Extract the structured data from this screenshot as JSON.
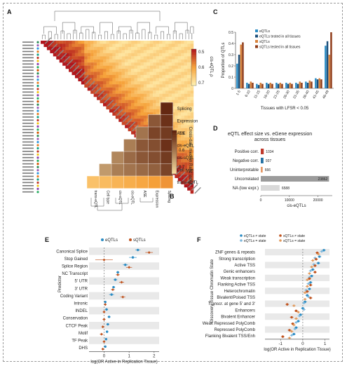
{
  "figure": {
    "panel_letters": [
      "A",
      "B",
      "C",
      "D",
      "E",
      "F"
    ]
  },
  "panel_a": {
    "colorbar_label": "cis-eQTL ρ",
    "colorbar_ticks": [
      "0.5",
      "0.6",
      "0.7"
    ],
    "colors": {
      "low": "#fff0b0",
      "mid": "#f6a23a",
      "high": "#b0141b"
    }
  },
  "panel_b": {
    "rows": [
      "Splicing",
      "Expression",
      "ASE",
      "cis-eQTL",
      "cis-sQTL",
      "Cell type",
      "trans-eQTL"
    ],
    "cols": [
      "trans-eQTL",
      "Cell type",
      "cis-sQTL",
      "cis-eQTL",
      "ASE",
      "Expression",
      "Splicing"
    ],
    "colorbar_label": "Cross-data median Rand index",
    "colorbar_ticks": [
      "0.5",
      "0.6",
      "0.7"
    ]
  },
  "chart_data": [
    {
      "panel": "C",
      "type": "bar",
      "xlabel": "Tissues with LFSR < 0.05",
      "ylabel": "Proportion of QTLs",
      "ylim": [
        0,
        0.5
      ],
      "yticks": [
        "0",
        "0.1",
        "0.2",
        "0.3",
        "0.4",
        "0.5"
      ],
      "categories": [
        "1-5",
        "6-10",
        "11-15",
        "16-20",
        "21-25",
        "26-30",
        "31-35",
        "36-40",
        "41-45",
        "46-49"
      ],
      "series": [
        {
          "name": "eQTLs",
          "color": "#2b8cc4",
          "values": [
            0.22,
            0.05,
            0.04,
            0.05,
            0.05,
            0.05,
            0.05,
            0.06,
            0.09,
            0.38
          ]
        },
        {
          "name": "eQTLs tested in all tissues",
          "color": "#1a4e7a",
          "values": [
            0.3,
            0.04,
            0.03,
            0.04,
            0.04,
            0.04,
            0.04,
            0.05,
            0.08,
            0.42
          ]
        },
        {
          "name": "sQTLs",
          "color": "#d8823a",
          "values": [
            0.39,
            0.06,
            0.05,
            0.05,
            0.05,
            0.05,
            0.06,
            0.07,
            0.09,
            0.3
          ]
        },
        {
          "name": "sQTLs tested in all tissues",
          "color": "#8e3a16",
          "values": [
            0.41,
            0.05,
            0.04,
            0.04,
            0.04,
            0.04,
            0.05,
            0.06,
            0.08,
            0.5
          ]
        }
      ]
    },
    {
      "panel": "D",
      "type": "bar",
      "title": "eQTL effect size vs. eGene expression across tissues",
      "xlabel": "cis-eQTLs",
      "categories": [
        "Positive corr.",
        "Negative corr.",
        "Uninterpretable",
        "Uncorrelated",
        "NA (low expr.)"
      ],
      "values": [
        1034,
        937,
        666,
        23862,
        6588
      ],
      "colors": [
        "#c0392b",
        "#2471a3",
        "#e59866",
        "#9b9b9b",
        "#d9d9d9"
      ],
      "xticks": [
        "0",
        "10000",
        "20000"
      ],
      "xlim": [
        0,
        25000
      ]
    },
    {
      "panel": "E",
      "type": "scatter",
      "xlabel": "log(OR Active in Replication Tissue)",
      "ylabel": "Predictor",
      "xlim": [
        -0.6,
        2.2
      ],
      "xticks": [
        "0",
        "1",
        "2"
      ],
      "categories": [
        "Canonical Splice",
        "Stop Gained",
        "Splice Region",
        "NC Transcript",
        "5' UTR",
        "3' UTR",
        "Coding Variant",
        "Intronic",
        "INDEL",
        "Conservation",
        "CTCF Peak",
        "Motif",
        "TF Peak",
        "DHS"
      ],
      "series": [
        {
          "name": "eQTLs",
          "color": "#2b8cc4",
          "values": [
            1.35,
            1.15,
            0.85,
            0.55,
            0.45,
            0.38,
            0.3,
            0.05,
            0.1,
            0.2,
            0.15,
            0.12,
            0.08,
            0.05
          ],
          "err": [
            0.1,
            0.15,
            0.1,
            0.06,
            0.08,
            0.06,
            0.1,
            0.03,
            0.06,
            0.06,
            0.06,
            0.05,
            0.05,
            0.04
          ]
        },
        {
          "name": "sQTLs",
          "color": "#c0531e",
          "values": [
            1.8,
            0.0,
            1.0,
            0.55,
            0.7,
            0.35,
            0.75,
            0.05,
            0.0,
            0.0,
            -0.05,
            -0.1,
            0.0,
            -0.05
          ],
          "err": [
            0.15,
            0.35,
            0.12,
            0.08,
            0.1,
            0.08,
            0.1,
            0.03,
            0.05,
            0.06,
            0.05,
            0.07,
            0.05,
            0.05
          ]
        }
      ]
    },
    {
      "panel": "F",
      "type": "scatter",
      "xlabel": "log(OR Active in Replication Tissue)",
      "ylabel": "Discovery Tissue Chromatin State",
      "xlim": [
        -1.7,
        1.2
      ],
      "xticks": [
        "-1",
        "0",
        "1"
      ],
      "categories": [
        "ZNF genes & repeats",
        "Strong transcription",
        "Active TSS",
        "Genic enhancers",
        "Weak transcription",
        "Flanking Active TSS",
        "Heterochromatin",
        "Bivalent/Poised TSS",
        "Transcr. at gene 5' and 3'",
        "Enhancers",
        "Bivalent Enhancer",
        "Weak Repressed PolyComb",
        "Repressed PolyComb",
        "Flanking Bivalent TSS/Enh"
      ],
      "series": [
        {
          "name": "eQTLs ≠ state",
          "color": "#2b8cc4",
          "values": [
            0.95,
            0.75,
            0.7,
            0.45,
            0.4,
            0.35,
            0.3,
            0.2,
            0.1,
            0.0,
            -0.1,
            -0.2,
            -0.3,
            -0.4
          ]
        },
        {
          "name": "eQTLs = state",
          "color": "#7fb8dc",
          "values": [
            0.85,
            0.55,
            0.5,
            0.35,
            0.3,
            0.25,
            0.15,
            0.25,
            0.05,
            0.05,
            -0.15,
            -0.3,
            -0.35,
            -0.5
          ]
        },
        {
          "name": "sQTLs ≠ state",
          "color": "#c0531e",
          "values": [
            0.65,
            0.6,
            0.55,
            0.55,
            0.3,
            0.35,
            0.2,
            0.35,
            -0.7,
            -0.3,
            -0.5,
            -0.45,
            -0.6,
            -0.9
          ]
        },
        {
          "name": "sQTLs = state",
          "color": "#e29a5c",
          "values": [
            0.7,
            0.45,
            0.4,
            0.3,
            0.2,
            0.2,
            0.1,
            0.1,
            -0.4,
            -0.2,
            -0.3,
            -0.4,
            -0.5,
            -0.6
          ]
        }
      ]
    }
  ]
}
